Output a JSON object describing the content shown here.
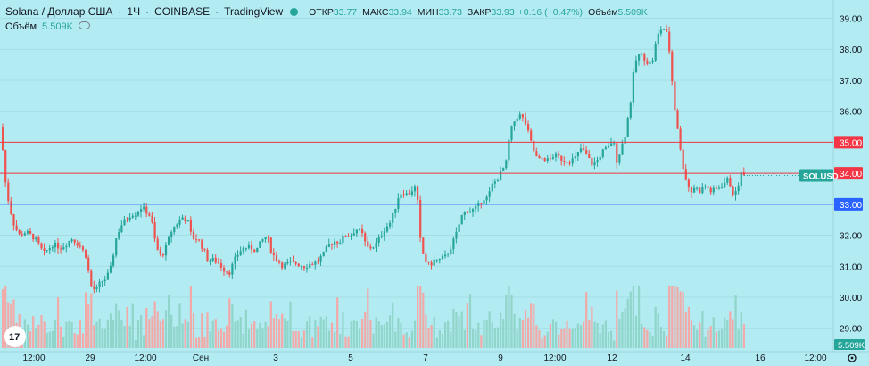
{
  "header": {
    "symbol": "Solana / Доллар США",
    "interval": "1Ч",
    "exchange": "COINBASE",
    "source": "TradingView",
    "open_label": "ОТКР",
    "open": "33.77",
    "high_label": "МАКС",
    "high": "33.94",
    "low_label": "МИН",
    "low": "33.73",
    "close_label": "ЗАКР",
    "close": "33.93",
    "change": "+0.16 (+0.47%)",
    "volume_label": "Объём",
    "volume": "5.509K"
  },
  "volume_legend": {
    "label": "Объём",
    "value": "5.509K"
  },
  "colors": {
    "up": "#26a69a",
    "down": "#ef5350",
    "background": "#b3ebf2",
    "line_red": "#f23645",
    "line_blue": "#2962ff"
  },
  "chart_data": {
    "type": "candlestick",
    "symbol_tag": "SOLUSD",
    "volume_tag": "5.509K",
    "ylim": [
      28.5,
      39.2
    ],
    "yticks": [
      "29.00",
      "30.00",
      "31.00",
      "32.00",
      "33.00",
      "34.00",
      "35.00",
      "36.00",
      "37.00",
      "38.00",
      "39.00"
    ],
    "xticks": [
      "12:00",
      "29",
      "12:00",
      "Сен",
      "3",
      "5",
      "7",
      "9",
      "12:00",
      "12",
      "14",
      "16",
      "12:00"
    ],
    "hlines": [
      {
        "value": 35.0,
        "label": "35.00",
        "color": "#f23645"
      },
      {
        "value": 34.0,
        "label": "34.00",
        "color": "#f23645"
      },
      {
        "value": 33.0,
        "label": "33.00",
        "color": "#2962ff"
      }
    ],
    "last_price": 33.93,
    "close_path": [
      [
        0,
        35.6
      ],
      [
        4,
        33.9
      ],
      [
        9,
        33.0
      ],
      [
        14,
        32.4
      ],
      [
        20,
        32.0
      ],
      [
        28,
        32.1
      ],
      [
        38,
        31.9
      ],
      [
        48,
        31.4
      ],
      [
        58,
        31.7
      ],
      [
        68,
        31.6
      ],
      [
        80,
        31.9
      ],
      [
        90,
        31.6
      ],
      [
        96,
        31.3
      ],
      [
        100,
        30.4
      ],
      [
        106,
        30.2
      ],
      [
        112,
        30.5
      ],
      [
        118,
        30.6
      ],
      [
        124,
        31.0
      ],
      [
        128,
        31.8
      ],
      [
        134,
        32.3
      ],
      [
        140,
        32.5
      ],
      [
        146,
        32.7
      ],
      [
        152,
        32.7
      ],
      [
        157,
        32.9
      ],
      [
        162,
        32.8
      ],
      [
        168,
        32.6
      ],
      [
        174,
        31.6
      ],
      [
        180,
        31.3
      ],
      [
        186,
        31.7
      ],
      [
        192,
        32.2
      ],
      [
        198,
        32.4
      ],
      [
        204,
        32.6
      ],
      [
        210,
        32.4
      ],
      [
        214,
        31.9
      ],
      [
        220,
        31.9
      ],
      [
        226,
        31.6
      ],
      [
        232,
        31.2
      ],
      [
        238,
        31.2
      ],
      [
        244,
        31.1
      ],
      [
        250,
        30.9
      ],
      [
        256,
        30.8
      ],
      [
        262,
        31.2
      ],
      [
        268,
        31.5
      ],
      [
        274,
        31.6
      ],
      [
        280,
        31.6
      ],
      [
        286,
        31.5
      ],
      [
        292,
        31.8
      ],
      [
        298,
        32.0
      ],
      [
        304,
        31.4
      ],
      [
        310,
        31.2
      ],
      [
        316,
        31.0
      ],
      [
        322,
        31.1
      ],
      [
        330,
        31.1
      ],
      [
        340,
        31.0
      ],
      [
        350,
        31.1
      ],
      [
        356,
        31.2
      ],
      [
        362,
        31.4
      ],
      [
        368,
        31.7
      ],
      [
        374,
        31.8
      ],
      [
        380,
        31.8
      ],
      [
        386,
        32.0
      ],
      [
        392,
        32.0
      ],
      [
        398,
        32.2
      ],
      [
        404,
        32.1
      ],
      [
        410,
        31.6
      ],
      [
        416,
        31.6
      ],
      [
        420,
        31.7
      ],
      [
        426,
        32.0
      ],
      [
        430,
        32.2
      ],
      [
        436,
        32.4
      ],
      [
        440,
        32.7
      ],
      [
        446,
        33.3
      ],
      [
        450,
        33.4
      ],
      [
        456,
        33.3
      ],
      [
        462,
        33.5
      ],
      [
        466,
        33.6
      ],
      [
        469,
        32.0
      ],
      [
        474,
        31.3
      ],
      [
        480,
        31.0
      ],
      [
        486,
        31.2
      ],
      [
        492,
        31.2
      ],
      [
        498,
        31.3
      ],
      [
        504,
        31.6
      ],
      [
        510,
        32.0
      ],
      [
        516,
        32.6
      ],
      [
        522,
        32.8
      ],
      [
        528,
        32.8
      ],
      [
        534,
        32.9
      ],
      [
        540,
        33.2
      ],
      [
        546,
        33.2
      ],
      [
        550,
        33.6
      ],
      [
        556,
        33.8
      ],
      [
        562,
        34.1
      ],
      [
        566,
        34.3
      ],
      [
        570,
        35.2
      ],
      [
        574,
        35.6
      ],
      [
        580,
        35.9
      ],
      [
        584,
        35.8
      ],
      [
        588,
        35.6
      ],
      [
        592,
        35.2
      ],
      [
        596,
        34.8
      ],
      [
        602,
        34.4
      ],
      [
        608,
        34.5
      ],
      [
        614,
        34.4
      ],
      [
        620,
        34.6
      ],
      [
        626,
        34.5
      ],
      [
        632,
        34.4
      ],
      [
        638,
        34.4
      ],
      [
        644,
        34.5
      ],
      [
        650,
        34.8
      ],
      [
        656,
        34.6
      ],
      [
        662,
        34.3
      ],
      [
        668,
        34.4
      ],
      [
        674,
        34.7
      ],
      [
        680,
        34.8
      ],
      [
        686,
        35.1
      ],
      [
        690,
        34.4
      ],
      [
        694,
        34.7
      ],
      [
        700,
        35.3
      ],
      [
        706,
        36.4
      ],
      [
        710,
        37.5
      ],
      [
        714,
        37.8
      ],
      [
        718,
        37.8
      ],
      [
        722,
        37.7
      ],
      [
        726,
        37.5
      ],
      [
        730,
        37.6
      ],
      [
        734,
        38.2
      ],
      [
        738,
        38.6
      ],
      [
        742,
        38.7
      ],
      [
        746,
        38.5
      ],
      [
        750,
        37.8
      ],
      [
        754,
        36.3
      ],
      [
        758,
        35.6
      ],
      [
        762,
        34.6
      ],
      [
        766,
        34.0
      ],
      [
        770,
        33.6
      ],
      [
        774,
        33.4
      ],
      [
        778,
        33.6
      ],
      [
        782,
        33.4
      ],
      [
        786,
        33.5
      ],
      [
        790,
        33.6
      ],
      [
        796,
        33.4
      ],
      [
        802,
        33.5
      ],
      [
        808,
        33.6
      ],
      [
        814,
        33.8
      ],
      [
        818,
        33.6
      ],
      [
        822,
        33.2
      ],
      [
        826,
        33.6
      ],
      [
        830,
        34.0
      ],
      [
        834,
        33.9
      ]
    ]
  }
}
